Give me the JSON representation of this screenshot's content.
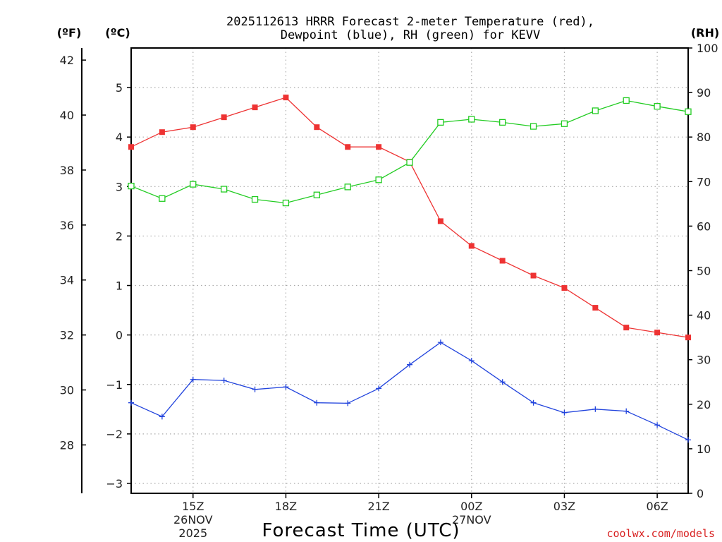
{
  "chart_data": {
    "type": "line",
    "title": [
      "2025112613 HRRR Forecast 2-meter Temperature (red),",
      "Dewpoint (blue), RH (green) for KEVV"
    ],
    "xlabel": "Forecast Time (UTC)",
    "credit": "coolwx.com/models",
    "units": {
      "fahrenheit": "(ºF)",
      "celsius": "(ºC)",
      "rh": "(RH)"
    },
    "x": [
      13,
      14,
      15,
      16,
      17,
      18,
      19,
      20,
      21,
      22,
      23,
      24,
      25,
      26,
      27,
      28,
      29,
      30,
      31
    ],
    "xlim": [
      13,
      31
    ],
    "x_ticks": [
      {
        "x": 15,
        "lines": [
          "15Z",
          "26NOV",
          "2025"
        ]
      },
      {
        "x": 18,
        "lines": [
          "18Z"
        ]
      },
      {
        "x": 21,
        "lines": [
          "21Z"
        ]
      },
      {
        "x": 24,
        "lines": [
          "00Z",
          "27NOV"
        ]
      },
      {
        "x": 27,
        "lines": [
          "03Z"
        ]
      },
      {
        "x": 30,
        "lines": [
          "06Z"
        ]
      }
    ],
    "left_axis_celsius": {
      "ylim": [
        -3.2,
        5.8
      ],
      "ticks": [
        "-3",
        "-2",
        "-1",
        "0",
        "1",
        "2",
        "3",
        "4",
        "5"
      ]
    },
    "far_left_axis_fahrenheit": {
      "ylim": [
        26.24,
        42.44
      ],
      "ticks": [
        "28",
        "30",
        "32",
        "34",
        "36",
        "38",
        "40",
        "42"
      ]
    },
    "right_axis_rh": {
      "ylim": [
        0,
        100
      ],
      "ticks": [
        "0",
        "10",
        "20",
        "30",
        "40",
        "50",
        "60",
        "70",
        "80",
        "90",
        "100"
      ]
    },
    "series": [
      {
        "name": "Temperature",
        "axis": "celsius",
        "color": "#ee3333",
        "marker": "filled-square",
        "values": [
          3.8,
          4.1,
          4.2,
          4.4,
          4.6,
          4.8,
          4.2,
          3.8,
          3.8,
          3.5,
          2.3,
          1.8,
          1.5,
          1.2,
          0.95,
          0.55,
          0.15,
          0.05,
          -0.05
        ]
      },
      {
        "name": "Dewpoint",
        "axis": "celsius",
        "color": "#2244dd",
        "marker": "plus",
        "values": [
          -1.37,
          -1.65,
          -0.9,
          -0.92,
          -1.1,
          -1.05,
          -1.37,
          -1.38,
          -1.08,
          -0.6,
          -0.15,
          -0.52,
          -0.95,
          -1.37,
          -1.57,
          -1.5,
          -1.54,
          -1.82,
          -2.12
        ]
      },
      {
        "name": "RH",
        "axis": "rh",
        "color": "#22cc22",
        "marker": "open-square",
        "values": [
          69,
          66.2,
          69.4,
          68.3,
          66,
          65.2,
          67,
          68.8,
          70.4,
          74.3,
          83.3,
          84,
          83.3,
          82.4,
          83,
          85.9,
          88.2,
          86.9,
          85.7
        ]
      }
    ]
  }
}
